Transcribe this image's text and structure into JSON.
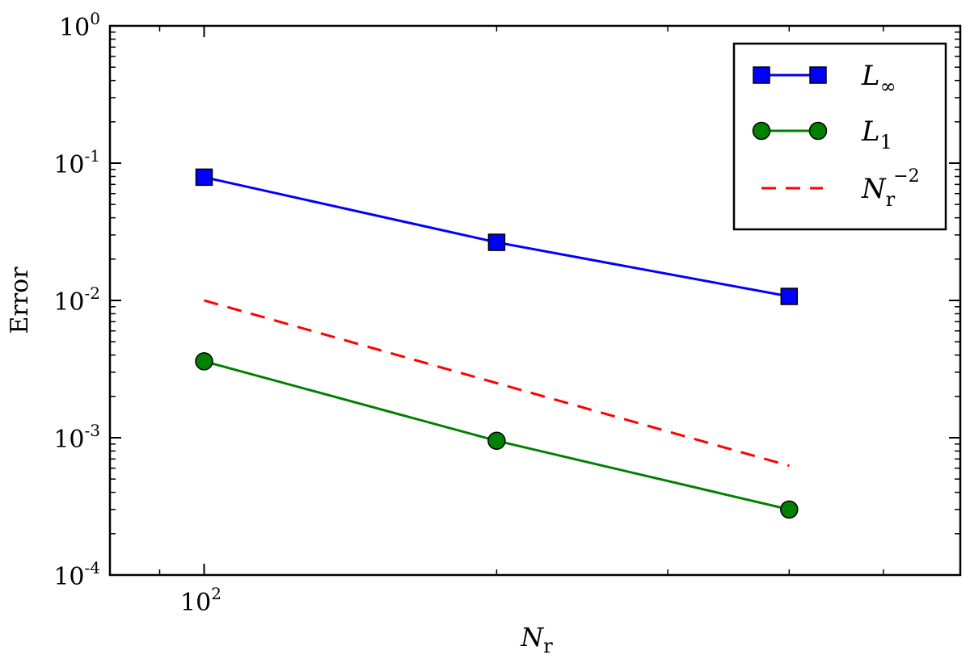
{
  "chart_data": {
    "type": "line",
    "x_scale": "log",
    "y_scale": "log",
    "xlabel": {
      "base": "N",
      "sub": "r"
    },
    "ylabel": "Error",
    "xlim": [
      80,
      600
    ],
    "ylim": [
      0.0001,
      1
    ],
    "y_ticks": [
      {
        "value": 1,
        "base": "10",
        "exp": "0"
      },
      {
        "value": 0.1,
        "base": "10",
        "exp": "-1"
      },
      {
        "value": 0.01,
        "base": "10",
        "exp": "-2"
      },
      {
        "value": 0.001,
        "base": "10",
        "exp": "-3"
      },
      {
        "value": 0.0001,
        "base": "10",
        "exp": "-4"
      }
    ],
    "x_ticks": [
      {
        "value": 100,
        "base": "10",
        "exp": "2"
      }
    ],
    "x_minor_ticks": [
      90,
      200,
      300,
      400,
      500
    ],
    "legend_position": "top-right",
    "series": [
      {
        "name": {
          "base": "L",
          "sub": "∞",
          "sup": ""
        },
        "x": [
          100,
          200,
          400
        ],
        "y": [
          0.079,
          0.0265,
          0.0107
        ],
        "color": "#0000ff",
        "marker": "square",
        "marker_fill": "#0000ff",
        "line": "solid"
      },
      {
        "name": {
          "base": "L",
          "sub": "1",
          "sup": ""
        },
        "x": [
          100,
          200,
          400
        ],
        "y": [
          0.0036,
          0.00095,
          0.0003
        ],
        "color": "#008000",
        "marker": "circle",
        "marker_fill": "#008000",
        "line": "solid"
      },
      {
        "name": {
          "base": "N",
          "sub": "r",
          "sup": "−2"
        },
        "x": [
          100,
          400
        ],
        "y": [
          0.01,
          0.000625
        ],
        "color": "#ff0000",
        "marker": "none",
        "line": "dashed"
      }
    ]
  }
}
